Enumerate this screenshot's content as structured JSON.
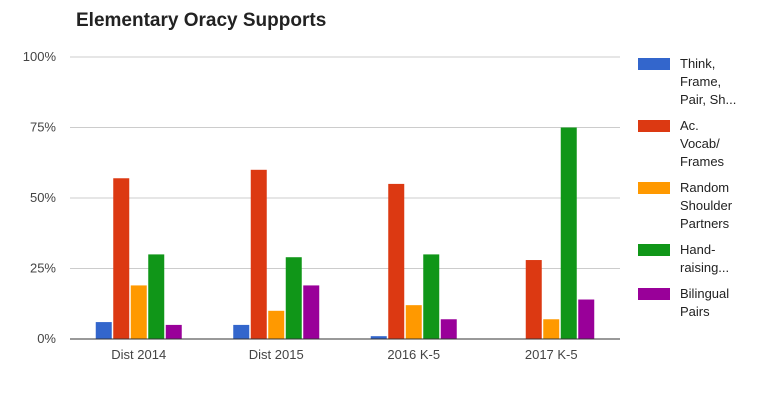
{
  "chart_data": {
    "type": "bar",
    "title": "Elementary Oracy Supports",
    "xlabel": "",
    "ylabel": "",
    "ylim": [
      0,
      100
    ],
    "ytick_labels": [
      "0%",
      "25%",
      "50%",
      "75%",
      "100%"
    ],
    "yticks": [
      0,
      25,
      50,
      75,
      100
    ],
    "grid": true,
    "legend_position": "right",
    "categories": [
      "Dist 2014",
      "Dist 2015",
      "2016 K-5",
      "2017 K-5"
    ],
    "series": [
      {
        "name": "Think, Frame, Pair, Sh...",
        "legend_lines": [
          "Think,",
          "Frame,",
          "Pair, Sh..."
        ],
        "color": "#3366cc",
        "values": [
          6,
          5,
          1,
          0
        ]
      },
      {
        "name": "Ac. Vocab/ Frames",
        "legend_lines": [
          "Ac.",
          "Vocab/",
          "Frames"
        ],
        "color": "#dc3912",
        "values": [
          57,
          60,
          55,
          28
        ]
      },
      {
        "name": "Random Shoulder Partners",
        "legend_lines": [
          "Random",
          "Shoulder",
          "Partners"
        ],
        "color": "#ff9900",
        "values": [
          19,
          10,
          12,
          7
        ]
      },
      {
        "name": "Hand-raising...",
        "legend_lines": [
          "Hand-",
          "raising..."
        ],
        "color": "#109618",
        "values": [
          30,
          29,
          30,
          75
        ]
      },
      {
        "name": "Bilingual Pairs",
        "legend_lines": [
          "Bilingual",
          "Pairs"
        ],
        "color": "#990099",
        "values": [
          5,
          19,
          7,
          14
        ]
      }
    ]
  }
}
